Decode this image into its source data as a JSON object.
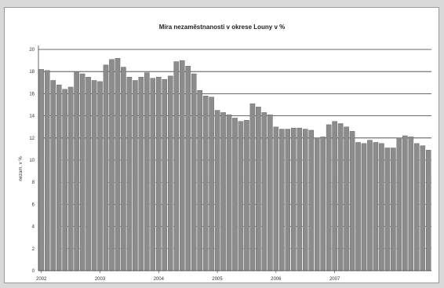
{
  "chart_data": {
    "type": "bar",
    "title": "Míra nezaměstnanosti v okrese Louny v %",
    "xlabel": "",
    "ylabel": "nezam. v %",
    "ylim": [
      0,
      20
    ],
    "yticks": [
      "0",
      "2",
      "4",
      "6",
      "8",
      "10",
      "12",
      "14",
      "16",
      "18",
      "20"
    ],
    "gridlines": [
      12,
      14,
      16,
      18,
      20
    ],
    "dashed_gridlines": [
      2,
      4,
      6,
      8,
      10
    ],
    "x_tick_labels": [
      {
        "index": 0,
        "label": "2002"
      },
      {
        "index": 10,
        "label": "2003"
      },
      {
        "index": 20,
        "label": "2004"
      },
      {
        "index": 30,
        "label": "2005"
      },
      {
        "index": 40,
        "label": "2006"
      },
      {
        "index": 50,
        "label": "2007"
      }
    ],
    "bar_color": "#8c8c8c",
    "values": [
      18.2,
      18.1,
      17.2,
      16.8,
      16.4,
      16.6,
      18.0,
      17.8,
      17.5,
      17.2,
      17.1,
      18.6,
      19.1,
      19.2,
      18.4,
      17.5,
      17.2,
      17.5,
      17.9,
      17.4,
      17.5,
      17.3,
      17.6,
      18.9,
      19.0,
      18.5,
      17.8,
      16.3,
      15.8,
      15.7,
      14.5,
      14.3,
      14.1,
      13.8,
      13.5,
      13.6,
      15.1,
      14.8,
      14.3,
      14.1,
      13.0,
      12.8,
      12.8,
      12.9,
      12.9,
      12.8,
      12.7,
      12.0,
      12.1,
      13.2,
      13.5,
      13.3,
      13.0,
      12.6,
      11.6,
      11.5,
      11.8,
      11.6,
      11.5,
      11.1,
      11.1,
      12.0,
      12.2,
      12.1,
      11.5,
      11.3,
      10.9
    ]
  }
}
